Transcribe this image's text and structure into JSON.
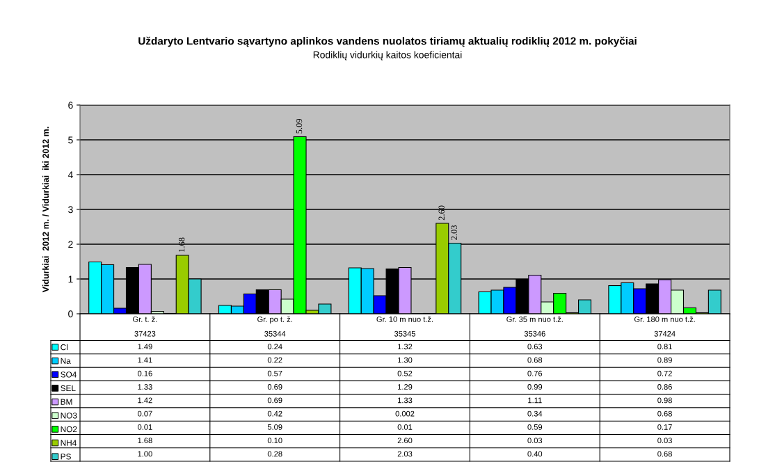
{
  "chart_data": {
    "type": "bar",
    "title": "Uždaryto Lentvario sąvartyno aplinkos vandens nuolatos tiriamų aktualių rodiklių 2012 m. pokyčiai",
    "subtitle": "Rodiklių vidurkių kaitos koeficientai",
    "ylabel": "Vidurkiai  2012 m. / Vidurkiai  iki 2012 m.",
    "categories": [
      "Gr. t. ž.\n37423",
      "Gr. po t. ž.\n35344",
      "Gr. 10 m nuo t.ž.\n35345",
      "Gr. 35 m nuo t.ž.\n35346",
      "Gr. 180 m nuo t.ž.\n37424"
    ],
    "ylim": [
      0,
      6
    ],
    "yticks": [
      0,
      1,
      2,
      3,
      4,
      5,
      6
    ],
    "grid": "y",
    "legend": "bottom left",
    "series": [
      {
        "name": "Cl",
        "color": "#00ffff",
        "values": [
          1.49,
          0.24,
          1.32,
          0.63,
          0.81
        ],
        "value_labels": [
          "1.49",
          "0.24",
          "1.32",
          "0.63",
          "0.81"
        ]
      },
      {
        "name": "Na",
        "color": "#00ccff",
        "values": [
          1.41,
          0.22,
          1.3,
          0.68,
          0.89
        ],
        "value_labels": [
          "1.41",
          "0.22",
          "1.30",
          "0.68",
          "0.89"
        ]
      },
      {
        "name": "SO4",
        "color": "#0000ff",
        "values": [
          0.16,
          0.57,
          0.52,
          0.76,
          0.72
        ],
        "value_labels": [
          "0.16",
          "0.57",
          "0.52",
          "0.76",
          "0.72"
        ]
      },
      {
        "name": "SEL",
        "color": "#000000",
        "values": [
          1.33,
          0.69,
          1.29,
          0.99,
          0.86
        ],
        "value_labels": [
          "1.33",
          "0.69",
          "1.29",
          "0.99",
          "0.86"
        ]
      },
      {
        "name": "BM",
        "color": "#cc99ff",
        "values": [
          1.42,
          0.69,
          1.33,
          1.11,
          0.98
        ],
        "value_labels": [
          "1.42",
          "0.69",
          "1.33",
          "1.11",
          "0.98"
        ]
      },
      {
        "name": "NO3",
        "color": "#ccffcc",
        "values": [
          0.07,
          0.42,
          0.002,
          0.34,
          0.68
        ],
        "value_labels": [
          "0.07",
          "0.42",
          "0.002",
          "0.34",
          "0.68"
        ]
      },
      {
        "name": "NO2",
        "color": "#00ff00",
        "values": [
          0.01,
          5.09,
          0.01,
          0.59,
          0.17
        ],
        "value_labels": [
          "0.01",
          "5.09",
          "0.01",
          "0.59",
          "0.17"
        ]
      },
      {
        "name": "NH4",
        "color": "#99cc00",
        "values": [
          1.68,
          0.1,
          2.6,
          0.03,
          0.03
        ],
        "value_labels": [
          "1.68",
          "0.10",
          "2.60",
          "0.03",
          "0.03"
        ]
      },
      {
        "name": "PS",
        "color": "#33cccc",
        "values": [
          1.0,
          0.28,
          2.03,
          0.4,
          0.68
        ],
        "value_labels": [
          "1.00",
          "0.28",
          "2.03",
          "0.40",
          "0.68"
        ]
      }
    ],
    "annotations": [
      "1.68",
      "5.09",
      "2.60",
      "2.03"
    ]
  }
}
